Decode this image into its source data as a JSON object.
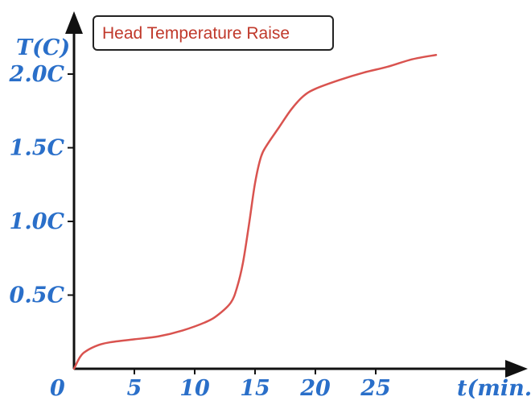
{
  "chart_data": {
    "type": "line",
    "title": "",
    "legend": {
      "text": "Head Temperature Raise",
      "placement": "top-left"
    },
    "xlabel": "t(min.)",
    "ylabel": "T(C)",
    "origin_label": "0",
    "xlim": [
      0,
      30
    ],
    "ylim": [
      0,
      2.5
    ],
    "x_ticks": [
      5,
      10,
      15,
      20,
      25
    ],
    "x_tick_labels": [
      "5",
      "10",
      "15",
      "20",
      "25"
    ],
    "y_ticks": [
      0.5,
      1.0,
      1.5,
      2.0
    ],
    "y_tick_labels": [
      "0.5C",
      "1.0C",
      "1.5C",
      "2.0C"
    ],
    "grid": false,
    "series": [
      {
        "line_color": "#d9534f",
        "x": [
          0,
          0.5,
          1,
          2,
          3,
          5,
          7,
          9,
          11,
          12,
          13,
          13.5,
          14,
          14.5,
          15,
          15.5,
          16,
          17,
          18,
          19,
          20,
          22,
          24,
          26,
          28,
          30
        ],
        "y": [
          0,
          0.08,
          0.12,
          0.16,
          0.18,
          0.2,
          0.22,
          0.26,
          0.32,
          0.37,
          0.45,
          0.55,
          0.72,
          0.98,
          1.26,
          1.44,
          1.52,
          1.64,
          1.76,
          1.85,
          1.9,
          1.96,
          2.01,
          2.05,
          2.1,
          2.13
        ]
      }
    ]
  }
}
